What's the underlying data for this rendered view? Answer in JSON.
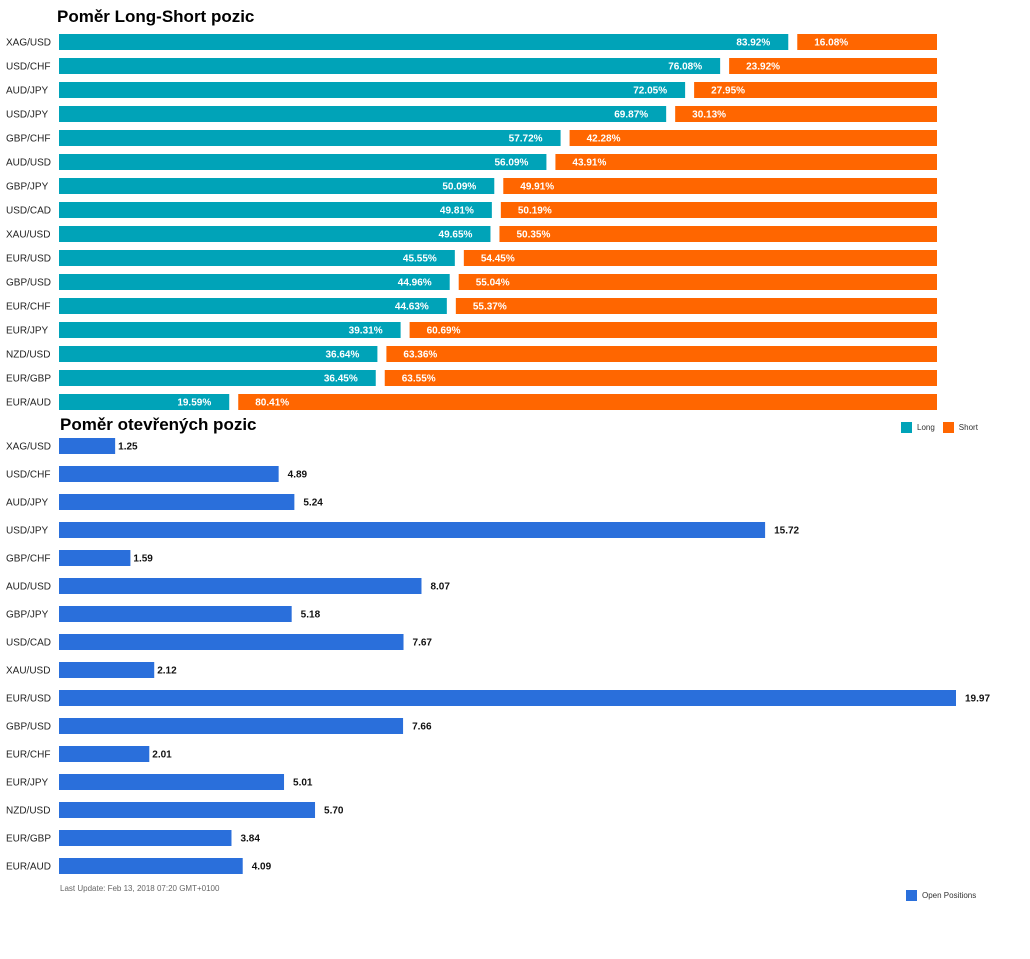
{
  "colors": {
    "long": "#00a3b8",
    "short": "#ff6600",
    "open": "#2a6fdb"
  },
  "footer": {
    "last_update": "Last Update: Feb 13, 2018 07:20 GMT+0100"
  },
  "chart_data": [
    {
      "type": "bar",
      "stacked": true,
      "orientation": "horizontal",
      "title": "Poměr Long-Short pozic",
      "categories": [
        "XAG/USD",
        "USD/CHF",
        "AUD/JPY",
        "USD/JPY",
        "GBP/CHF",
        "AUD/USD",
        "GBP/JPY",
        "USD/CAD",
        "XAU/USD",
        "EUR/USD",
        "GBP/USD",
        "EUR/CHF",
        "EUR/JPY",
        "NZD/USD",
        "EUR/GBP",
        "EUR/AUD"
      ],
      "series": [
        {
          "name": "Long",
          "values": [
            83.92,
            76.08,
            72.05,
            69.87,
            57.72,
            56.09,
            50.09,
            49.81,
            49.65,
            45.55,
            44.96,
            44.63,
            39.31,
            36.64,
            36.45,
            19.59
          ]
        },
        {
          "name": "Short",
          "values": [
            16.08,
            23.92,
            27.95,
            30.13,
            42.28,
            43.91,
            49.91,
            50.19,
            50.35,
            54.45,
            55.04,
            55.37,
            60.69,
            63.36,
            63.55,
            80.41
          ]
        }
      ],
      "xlim": [
        0,
        100
      ],
      "legend": "bottom-right"
    },
    {
      "type": "bar",
      "orientation": "horizontal",
      "title": "Poměr otevřených pozic",
      "categories": [
        "XAG/USD",
        "USD/CHF",
        "AUD/JPY",
        "USD/JPY",
        "GBP/CHF",
        "AUD/USD",
        "GBP/JPY",
        "USD/CAD",
        "XAU/USD",
        "EUR/USD",
        "GBP/USD",
        "EUR/CHF",
        "EUR/JPY",
        "NZD/USD",
        "EUR/GBP",
        "EUR/AUD"
      ],
      "series": [
        {
          "name": "Open Positions",
          "values": [
            1.25,
            4.89,
            5.24,
            15.72,
            1.59,
            8.07,
            5.18,
            7.67,
            2.12,
            19.97,
            7.66,
            2.01,
            5.01,
            5.7,
            3.84,
            4.09
          ]
        }
      ],
      "xlim": [
        0,
        19.97
      ],
      "legend": "bottom-right"
    }
  ]
}
